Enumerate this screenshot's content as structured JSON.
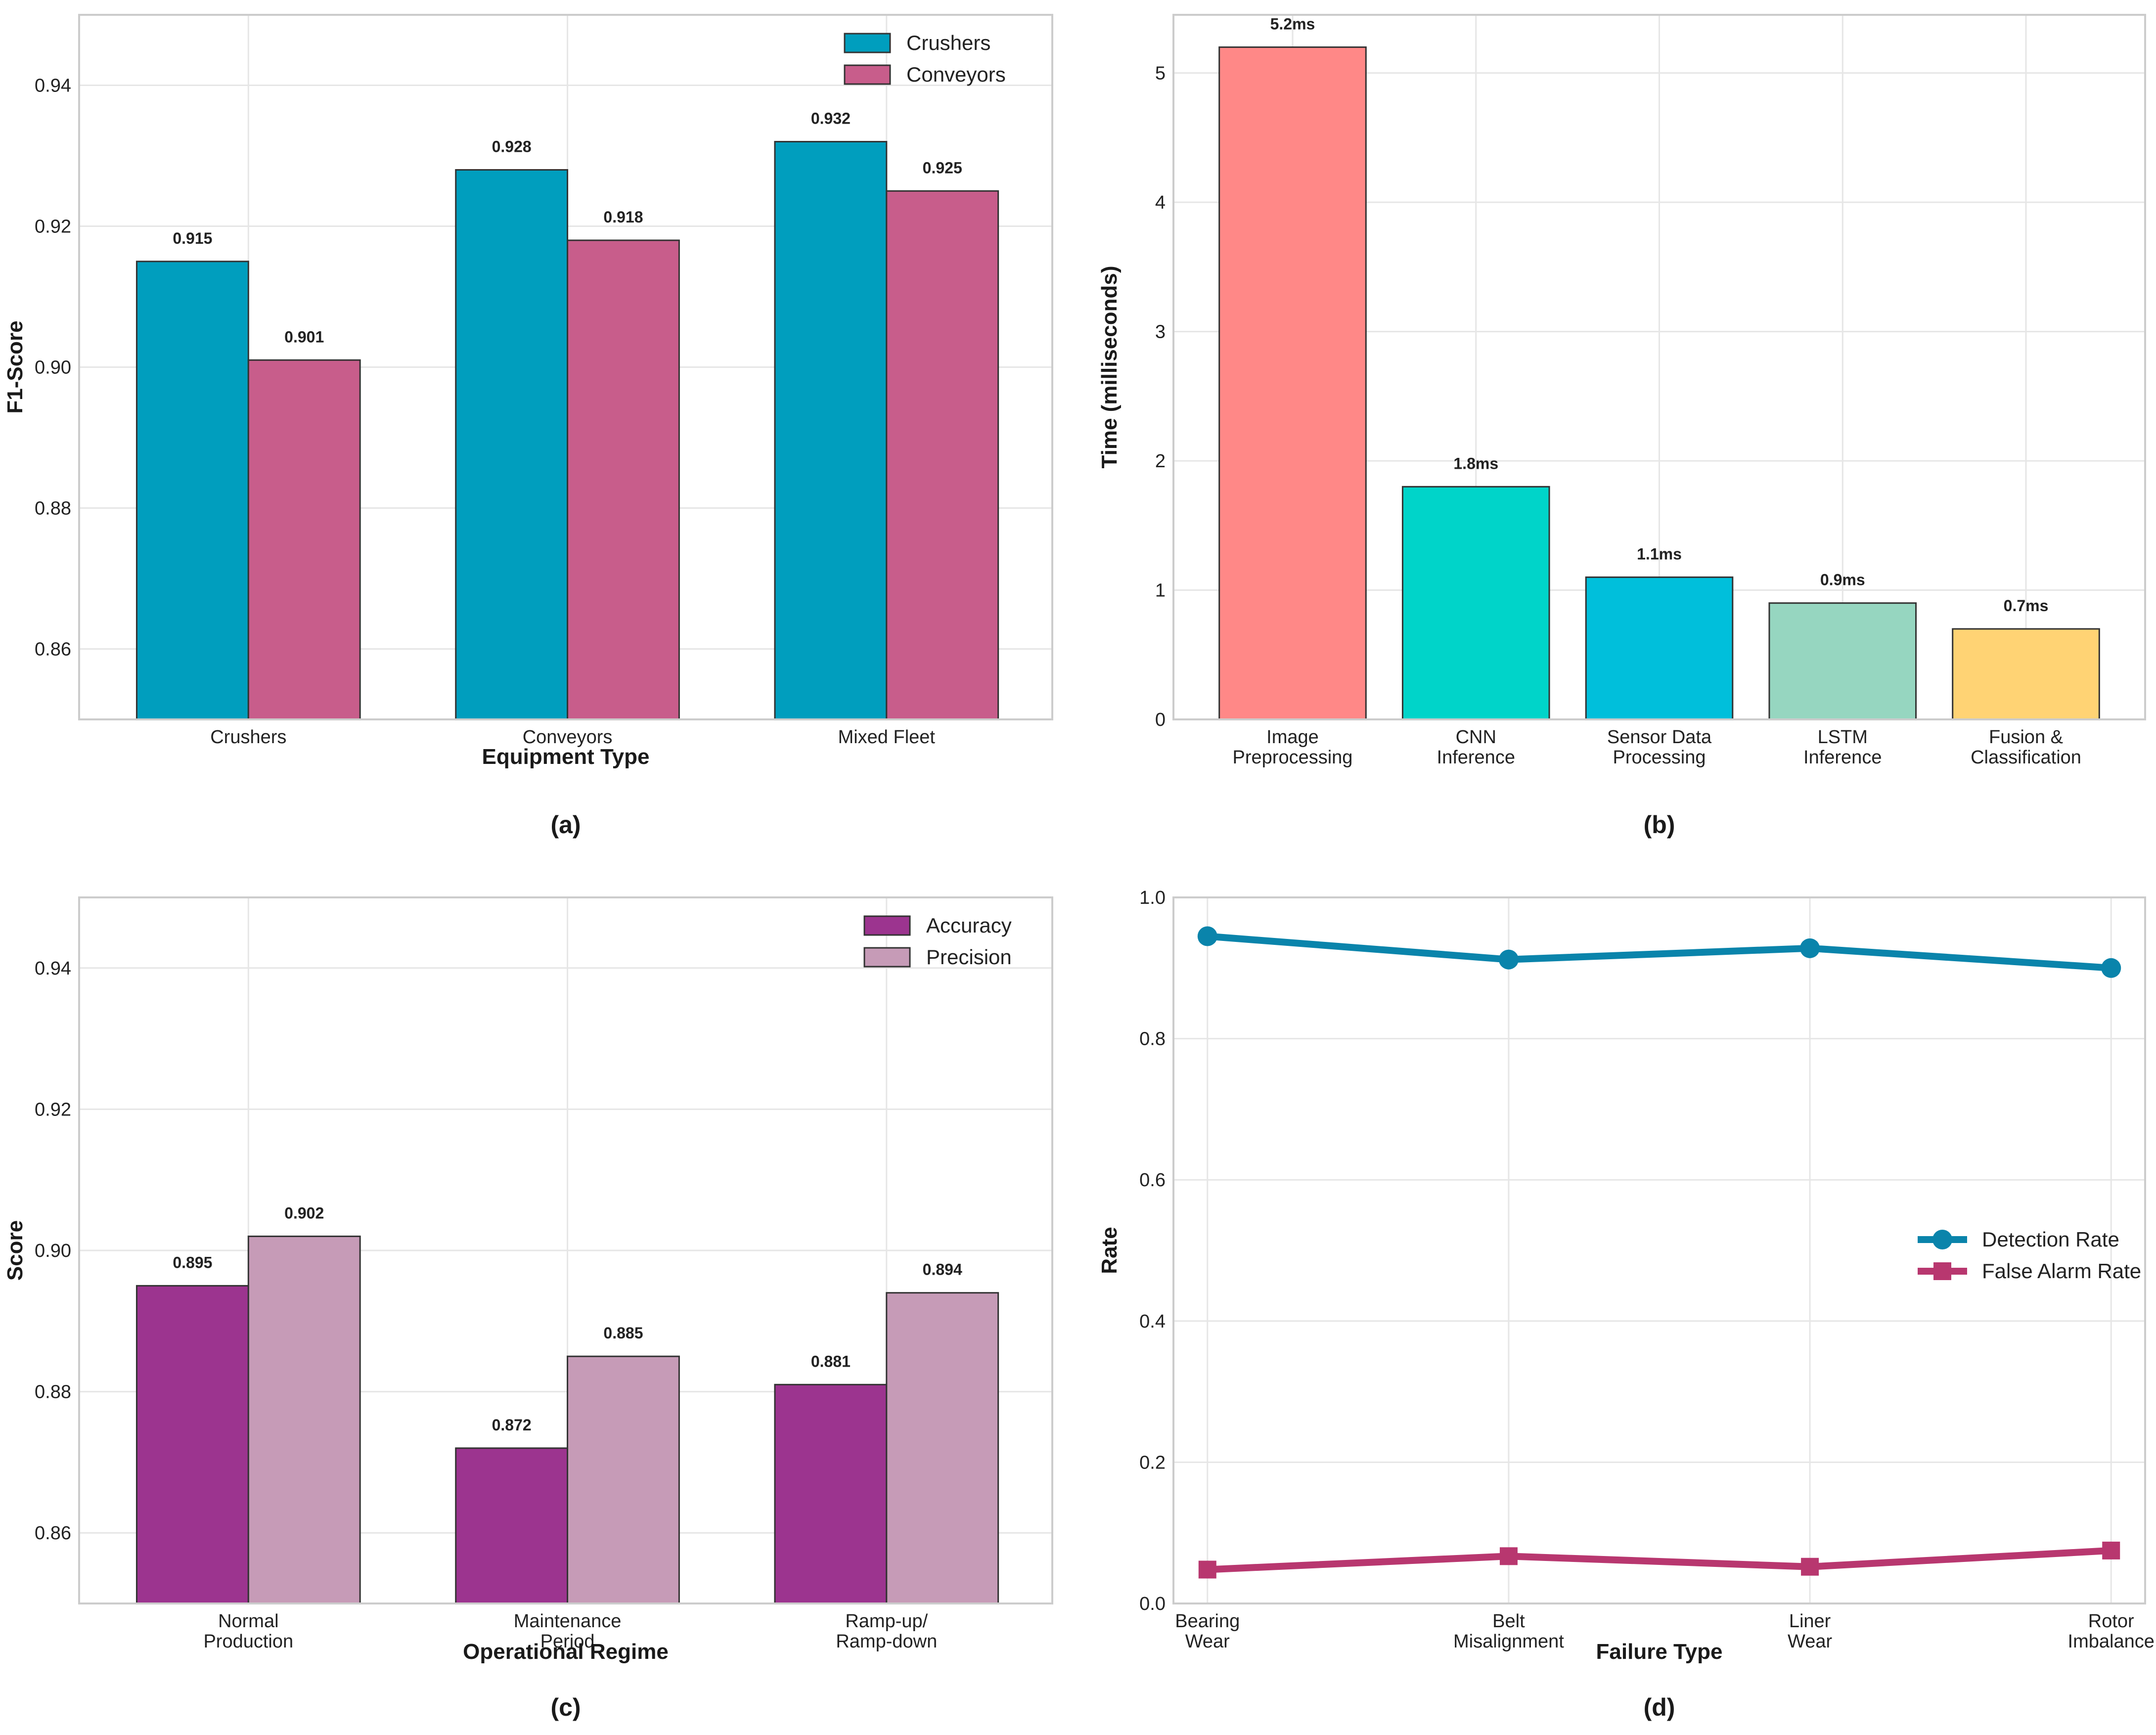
{
  "chart_data": [
    {
      "id": "a",
      "type": "bar",
      "panel_label": "(a)",
      "xlabel": "Equipment Type",
      "ylabel": "F1-Score",
      "ylim": [
        0.85,
        0.95
      ],
      "yticks": [
        0.86,
        0.88,
        0.9,
        0.92,
        0.94
      ],
      "ytick_labels": [
        "0.86",
        "0.88",
        "0.90",
        "0.92",
        "0.94"
      ],
      "categories": [
        [
          "Crushers"
        ],
        [
          "Conveyors"
        ],
        [
          "Mixed Fleet"
        ]
      ],
      "series": [
        {
          "name": "Crushers",
          "color": "#009ebe",
          "values": [
            0.915,
            0.928,
            0.932
          ],
          "labels": [
            "0.915",
            "0.928",
            "0.932"
          ]
        },
        {
          "name": "Conveyors",
          "color": "#c85d8b",
          "values": [
            0.901,
            0.918,
            0.925
          ],
          "labels": [
            "0.901",
            "0.918",
            "0.925"
          ]
        }
      ],
      "legend_position": "top-right",
      "grid": true
    },
    {
      "id": "b",
      "type": "bar",
      "panel_label": "(b)",
      "xlabel": "",
      "ylabel": "Time (milliseconds)",
      "ylim": [
        0,
        5.45
      ],
      "yticks": [
        0,
        1,
        2,
        3,
        4,
        5
      ],
      "ytick_labels": [
        "0",
        "1",
        "2",
        "3",
        "4",
        "5"
      ],
      "categories": [
        [
          "Image",
          "Preprocessing"
        ],
        [
          "CNN",
          "Inference"
        ],
        [
          "Sensor Data",
          "Processing"
        ],
        [
          "LSTM",
          "Inference"
        ],
        [
          "Fusion &",
          "Classification"
        ]
      ],
      "values": [
        5.2,
        1.8,
        1.1,
        0.9,
        0.7
      ],
      "labels": [
        "5.2ms",
        "1.8ms",
        "1.1ms",
        "0.9ms",
        "0.7ms"
      ],
      "colors": [
        "#ff8887",
        "#00d4c9",
        "#00bfdb",
        "#96d6c0",
        "#ffd374"
      ],
      "grid": true
    },
    {
      "id": "c",
      "type": "bar",
      "panel_label": "(c)",
      "xlabel": "Operational Regime",
      "ylabel": "Score",
      "ylim": [
        0.85,
        0.95
      ],
      "yticks": [
        0.86,
        0.88,
        0.9,
        0.92,
        0.94
      ],
      "ytick_labels": [
        "0.86",
        "0.88",
        "0.90",
        "0.92",
        "0.94"
      ],
      "categories": [
        [
          "Normal",
          "Production"
        ],
        [
          "Maintenance",
          "Period"
        ],
        [
          "Ramp-up/",
          "Ramp-down"
        ]
      ],
      "series": [
        {
          "name": "Accuracy",
          "color": "#9c348f",
          "values": [
            0.895,
            0.872,
            0.881
          ],
          "labels": [
            "0.895",
            "0.872",
            "0.881"
          ]
        },
        {
          "name": "Precision",
          "color": "#c69bb7",
          "values": [
            0.902,
            0.885,
            0.894
          ],
          "labels": [
            "0.902",
            "0.885",
            "0.894"
          ]
        }
      ],
      "legend_position": "top-right",
      "grid": true
    },
    {
      "id": "d",
      "type": "line",
      "panel_label": "(d)",
      "xlabel": "Failure Type",
      "ylabel": "Rate",
      "ylim": [
        0.0,
        1.0
      ],
      "yticks": [
        0.0,
        0.2,
        0.4,
        0.6,
        0.8,
        1.0
      ],
      "ytick_labels": [
        "0.0",
        "0.2",
        "0.4",
        "0.6",
        "0.8",
        "1.0"
      ],
      "categories": [
        [
          "Bearing",
          "Wear"
        ],
        [
          "Belt",
          "Misalignment"
        ],
        [
          "Liner",
          "Wear"
        ],
        [
          "Rotor",
          "Imbalance"
        ]
      ],
      "series": [
        {
          "name": "Detection Rate",
          "color": "#0a84ab",
          "marker": "circle",
          "values": [
            0.945,
            0.912,
            0.928,
            0.9
          ]
        },
        {
          "name": "False Alarm Rate",
          "color": "#b8376f",
          "marker": "square",
          "values": [
            0.048,
            0.067,
            0.052,
            0.075
          ]
        }
      ],
      "legend_position": "center-right",
      "grid": true
    }
  ]
}
